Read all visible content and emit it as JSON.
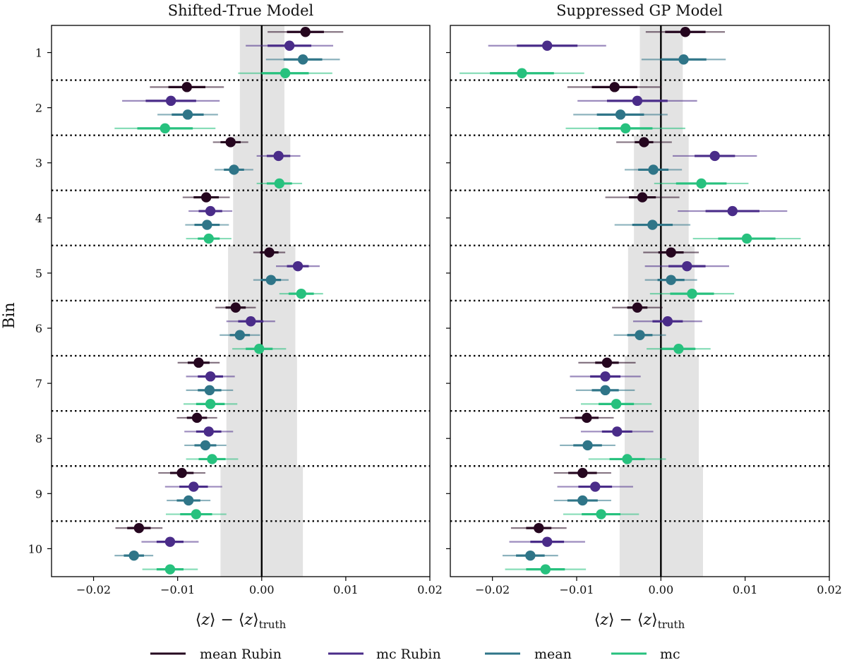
{
  "chart_data": [
    {
      "type": "errorbar",
      "title": "Shifted-True Model",
      "xlabel": "⟨z⟩ − ⟨z⟩truth",
      "ylabel": "Bin",
      "xlim": [
        -0.025,
        0.02
      ],
      "xticks": [
        -0.02,
        -0.01,
        0.0,
        0.01,
        0.02
      ],
      "xtick_labels": [
        "−0.02",
        "−0.01",
        "0.00",
        "0.01",
        "0.02"
      ],
      "bins": [
        "1",
        "2",
        "3",
        "4",
        "5",
        "6",
        "7",
        "8",
        "9",
        "10"
      ],
      "reference_line": 0.0,
      "shaded_band": [
        {
          "bin": 1,
          "lo": -0.0026,
          "hi": 0.0027
        },
        {
          "bin": 2,
          "lo": -0.0026,
          "hi": 0.0027
        },
        {
          "bin": 3,
          "lo": -0.0034,
          "hi": 0.0034
        },
        {
          "bin": 4,
          "lo": -0.0034,
          "hi": 0.0034
        },
        {
          "bin": 5,
          "lo": -0.004,
          "hi": 0.004
        },
        {
          "bin": 6,
          "lo": -0.004,
          "hi": 0.004
        },
        {
          "bin": 7,
          "lo": -0.0042,
          "hi": 0.0042
        },
        {
          "bin": 8,
          "lo": -0.0042,
          "hi": 0.0042
        },
        {
          "bin": 9,
          "lo": -0.0049,
          "hi": 0.0049
        },
        {
          "bin": 10,
          "lo": -0.0049,
          "hi": 0.0049
        }
      ],
      "series": [
        {
          "name": "mean Rubin",
          "color": "#25061f",
          "values": [
            0.0052,
            -0.0089,
            -0.0037,
            -0.0066,
            0.0009,
            -0.0031,
            -0.0075,
            -0.0077,
            -0.0095,
            -0.0146
          ],
          "err1": [
            0.0022,
            0.0022,
            0.0012,
            0.0015,
            0.0011,
            0.0012,
            0.0013,
            0.0012,
            0.0014,
            0.0014
          ],
          "err2": [
            0.0045,
            0.0044,
            0.0021,
            0.0028,
            0.0019,
            0.0024,
            0.0025,
            0.0024,
            0.0028,
            0.0028
          ]
        },
        {
          "name": "mc Rubin",
          "color": "#4a2c89",
          "values": [
            0.0033,
            -0.0108,
            0.002,
            -0.0061,
            0.0043,
            -0.0013,
            -0.0061,
            -0.0063,
            -0.0081,
            -0.0109
          ],
          "err1": [
            0.0026,
            0.003,
            0.0014,
            0.0014,
            0.0013,
            0.0015,
            0.0015,
            0.0015,
            0.0017,
            0.0016
          ],
          "err2": [
            0.0052,
            0.0058,
            0.0026,
            0.0026,
            0.0026,
            0.0029,
            0.0029,
            0.0029,
            0.0034,
            0.0034
          ]
        },
        {
          "name": "mean",
          "color": "#2f7588",
          "values": [
            0.0049,
            -0.0088,
            -0.0033,
            -0.0065,
            0.0011,
            -0.0026,
            -0.0062,
            -0.0067,
            -0.0087,
            -0.0152
          ],
          "err1": [
            0.0023,
            0.0019,
            0.0012,
            0.0015,
            0.0012,
            0.0012,
            0.0014,
            0.0013,
            0.0014,
            0.0012
          ],
          "err2": [
            0.0044,
            0.0036,
            0.0023,
            0.0026,
            0.0021,
            0.0024,
            0.0028,
            0.0025,
            0.0026,
            0.0023
          ]
        },
        {
          "name": "mc",
          "color": "#27c17e",
          "values": [
            0.0028,
            -0.0115,
            0.0021,
            -0.0063,
            0.0047,
            -0.0003,
            -0.0061,
            -0.0059,
            -0.0078,
            -0.0109
          ],
          "err1": [
            0.0028,
            0.0033,
            0.0015,
            0.0013,
            0.0015,
            0.0016,
            0.0017,
            0.0016,
            0.0019,
            0.0016
          ],
          "err2": [
            0.0056,
            0.006,
            0.0027,
            0.0027,
            0.0026,
            0.0032,
            0.0032,
            0.0031,
            0.0036,
            0.0033
          ]
        }
      ]
    },
    {
      "type": "errorbar",
      "title": "Suppressed GP Model",
      "xlabel": "⟨z⟩ − ⟨z⟩truth",
      "ylabel": "",
      "xlim": [
        -0.025,
        0.02
      ],
      "xticks": [
        -0.02,
        -0.01,
        0.0,
        0.01,
        0.02
      ],
      "xtick_labels": [
        "−0.02",
        "−0.01",
        "0.00",
        "0.01",
        "0.02"
      ],
      "bins": [
        "1",
        "2",
        "3",
        "4",
        "5",
        "6",
        "7",
        "8",
        "9",
        "10"
      ],
      "reference_line": 0.0,
      "shaded_band": [
        {
          "bin": 1,
          "lo": -0.0025,
          "hi": 0.0026
        },
        {
          "bin": 2,
          "lo": -0.0025,
          "hi": 0.0026
        },
        {
          "bin": 3,
          "lo": -0.0032,
          "hi": 0.0033
        },
        {
          "bin": 4,
          "lo": -0.0032,
          "hi": 0.0033
        },
        {
          "bin": 5,
          "lo": -0.0039,
          "hi": 0.004
        },
        {
          "bin": 6,
          "lo": -0.0039,
          "hi": 0.004
        },
        {
          "bin": 7,
          "lo": -0.0043,
          "hi": 0.0045
        },
        {
          "bin": 8,
          "lo": -0.0043,
          "hi": 0.0045
        },
        {
          "bin": 9,
          "lo": -0.0049,
          "hi": 0.005
        },
        {
          "bin": 10,
          "lo": -0.0049,
          "hi": 0.005
        }
      ],
      "series": [
        {
          "name": "mean Rubin",
          "color": "#25061f",
          "values": [
            0.0029,
            -0.0055,
            -0.002,
            -0.0022,
            0.0012,
            -0.0028,
            -0.0064,
            -0.0088,
            -0.0093,
            -0.0145
          ],
          "err1": [
            0.0024,
            0.0027,
            0.0011,
            0.0016,
            0.0015,
            0.0012,
            0.0014,
            0.0014,
            0.0017,
            0.0015
          ],
          "err2": [
            0.0047,
            0.0056,
            0.0033,
            0.0044,
            0.0033,
            0.003,
            0.0034,
            0.0032,
            0.0034,
            0.0033
          ]
        },
        {
          "name": "mc Rubin",
          "color": "#4a2c89",
          "values": [
            -0.0135,
            -0.0028,
            0.0064,
            0.0085,
            0.0031,
            0.0008,
            -0.0066,
            -0.0052,
            -0.0078,
            -0.0135
          ],
          "err1": [
            0.0036,
            0.0036,
            0.0024,
            0.0032,
            0.0022,
            0.0018,
            0.0018,
            0.0018,
            0.002,
            0.002
          ],
          "err2": [
            0.007,
            0.0071,
            0.005,
            0.0065,
            0.005,
            0.0041,
            0.0042,
            0.0043,
            0.0045,
            0.0045
          ]
        },
        {
          "name": "mean",
          "color": "#2f7588",
          "values": [
            0.0027,
            -0.0048,
            -0.0009,
            -0.001,
            0.0012,
            -0.0025,
            -0.0066,
            -0.0087,
            -0.0093,
            -0.0155
          ],
          "err1": [
            0.0027,
            0.0028,
            0.0018,
            0.0024,
            0.0016,
            0.0015,
            0.0016,
            0.0017,
            0.0018,
            0.0017
          ],
          "err2": [
            0.005,
            0.0056,
            0.0034,
            0.0045,
            0.0031,
            0.0031,
            0.0035,
            0.0033,
            0.0034,
            0.0033
          ]
        },
        {
          "name": "mc",
          "color": "#27c17e",
          "values": [
            -0.0165,
            -0.0042,
            0.0048,
            0.0102,
            0.0037,
            0.0021,
            -0.0053,
            -0.004,
            -0.0071,
            -0.0137
          ],
          "err1": [
            0.0038,
            0.0032,
            0.003,
            0.0034,
            0.0026,
            0.002,
            0.0021,
            0.0021,
            0.0023,
            0.0023
          ],
          "err2": [
            0.0074,
            0.0071,
            0.0056,
            0.0064,
            0.005,
            0.0038,
            0.0042,
            0.0046,
            0.0045,
            0.0048
          ]
        }
      ]
    }
  ],
  "legend": {
    "position": "bottom-center",
    "items": [
      {
        "label_main": "mean",
        "label_sub": "Rubin",
        "color": "#25061f"
      },
      {
        "label_main": "mc",
        "label_sub": "Rubin",
        "color": "#4a2c89"
      },
      {
        "label_main": "mean",
        "label_sub": "",
        "color": "#2f7588"
      },
      {
        "label_main": "mc",
        "label_sub": "",
        "color": "#27c17e"
      }
    ]
  }
}
